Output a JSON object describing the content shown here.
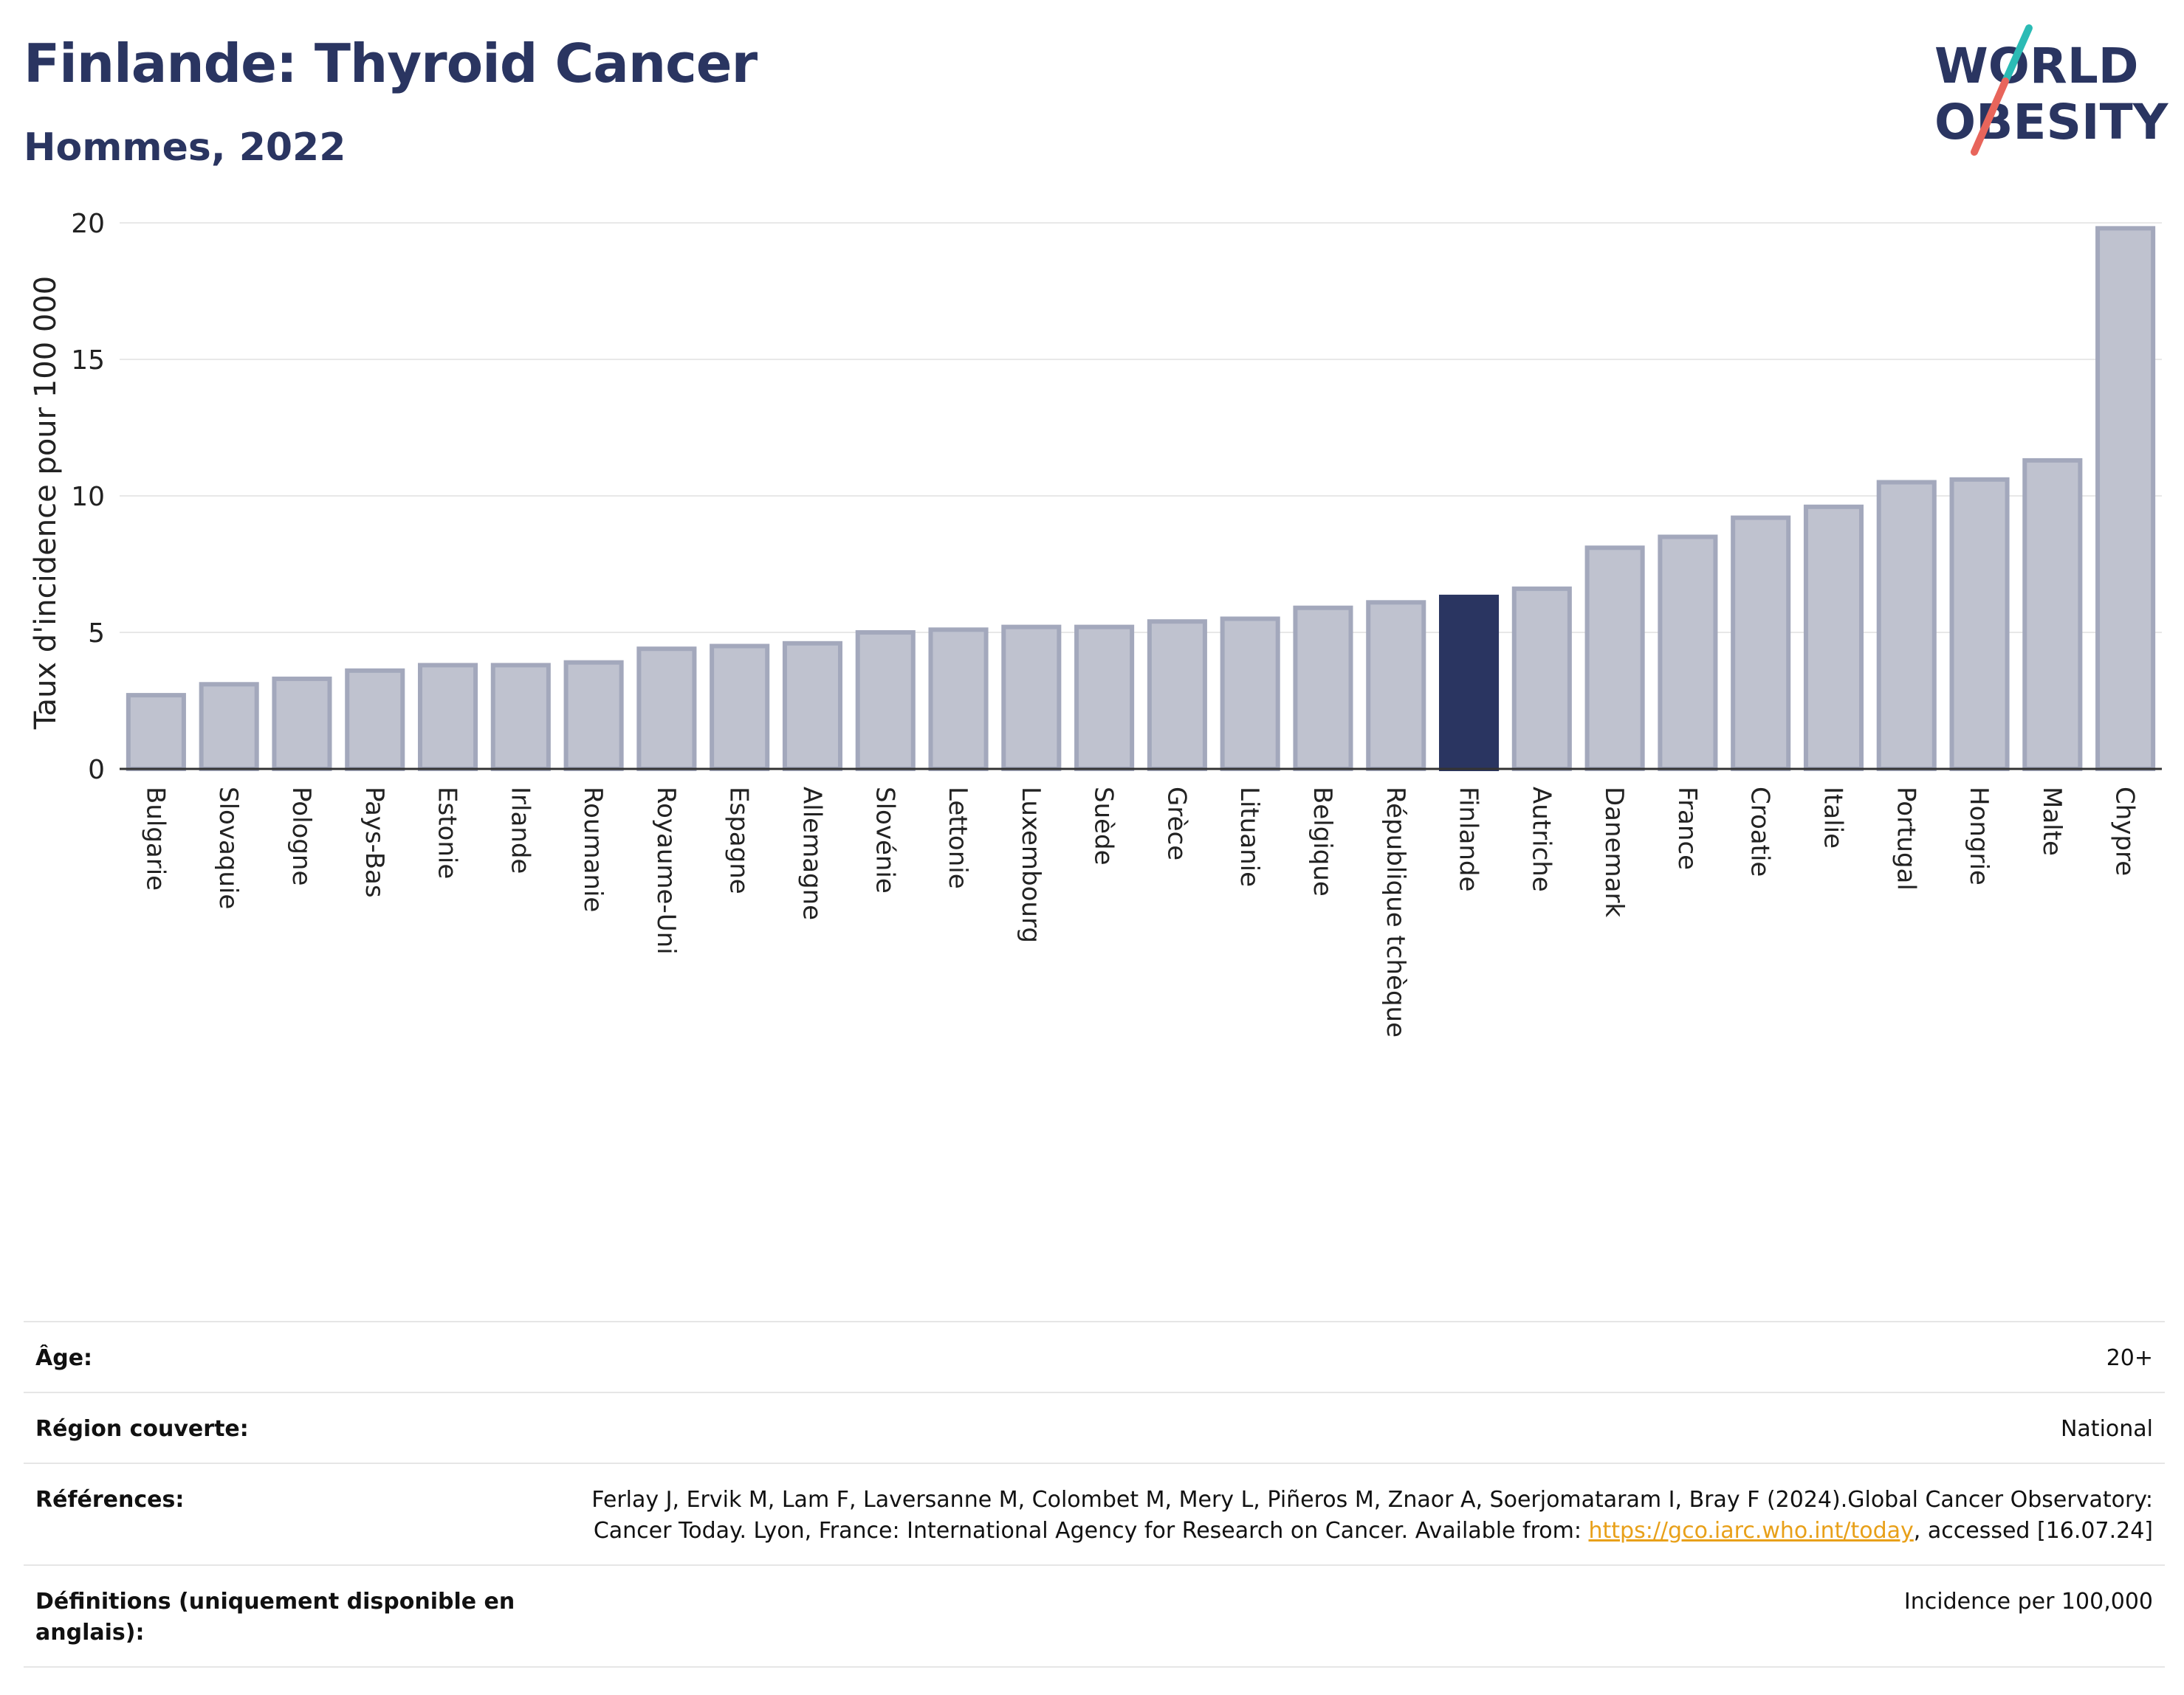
{
  "header": {
    "title": "Finlande: Thyroid Cancer",
    "subtitle": "Hommes, 2022"
  },
  "logo": {
    "line1": "WORLD",
    "line2": "OBESITY",
    "slash_colors": [
      "#2bbbb5",
      "#e8655b"
    ]
  },
  "chart_data": {
    "type": "bar",
    "title": "Finlande: Thyroid Cancer",
    "subtitle": "Hommes, 2022",
    "ylabel": "Taux d'incidence pour 100 000",
    "xlabel": "",
    "ylim": [
      0,
      20
    ],
    "yticks": [
      0,
      5,
      10,
      15,
      20
    ],
    "grid": true,
    "highlight": "Finlande",
    "colors": {
      "default": "#bfc2cf",
      "default_border": "#a3a8bc",
      "highlight": "#2a3561"
    },
    "categories": [
      "Bulgarie",
      "Slovaquie",
      "Pologne",
      "Pays-Bas",
      "Estonie",
      "Irlande",
      "Roumanie",
      "Royaume-Uni",
      "Espagne",
      "Allemagne",
      "Slovénie",
      "Lettonie",
      "Luxembourg",
      "Suède",
      "Grèce",
      "Lituanie",
      "Belgique",
      "République tchèque",
      "Finlande",
      "Autriche",
      "Danemark",
      "France",
      "Croatie",
      "Italie",
      "Portugal",
      "Hongrie",
      "Malte",
      "Chypre"
    ],
    "values": [
      2.7,
      3.1,
      3.3,
      3.6,
      3.8,
      3.8,
      3.9,
      4.4,
      4.5,
      4.6,
      5.0,
      5.1,
      5.2,
      5.2,
      5.4,
      5.5,
      5.9,
      6.1,
      6.3,
      6.6,
      8.1,
      8.5,
      9.2,
      9.6,
      10.5,
      10.6,
      11.3,
      19.8
    ]
  },
  "info": {
    "rows": [
      {
        "label": "Âge:",
        "value": "20+"
      },
      {
        "label": "Région couverte:",
        "value": "National"
      },
      {
        "label": "Références:",
        "value_pre": "Ferlay J, Ervik M, Lam F, Laversanne M, Colombet M, Mery L, Piñeros M, Znaor A, Soerjomataram I, Bray F (2024).Global Cancer Observatory: Cancer Today. Lyon, France: International Agency for Research on Cancer. Available from: ",
        "link": "https://gco.iarc.who.int/today",
        "value_post": ", accessed [16.07.24]"
      },
      {
        "label": "Définitions (uniquement disponible en anglais):",
        "value": "Incidence per 100,000"
      }
    ]
  }
}
